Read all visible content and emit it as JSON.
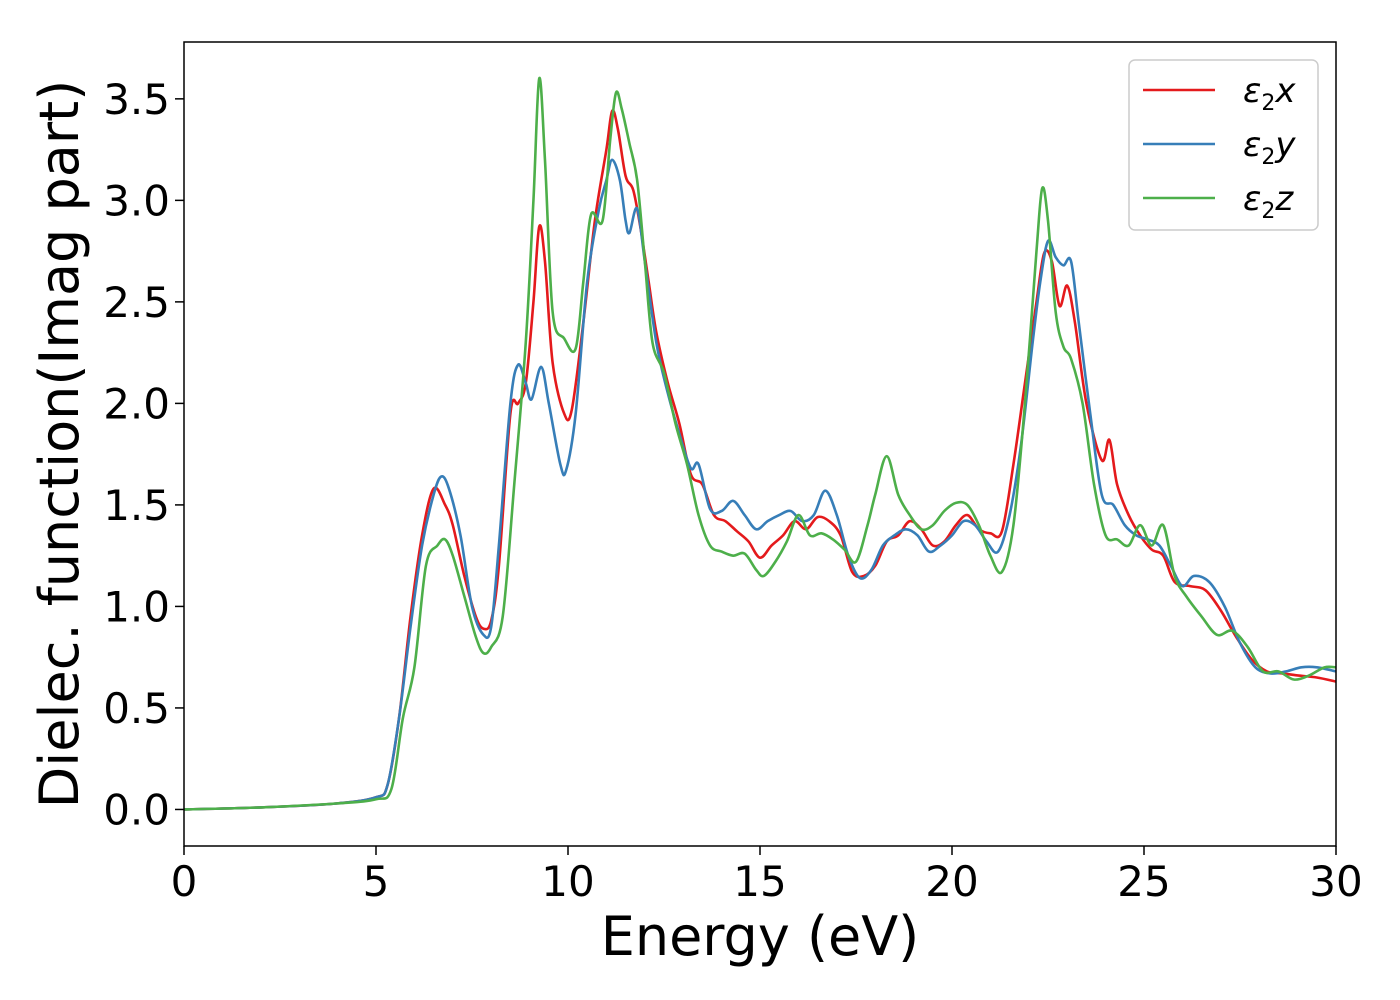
{
  "chart_data": {
    "type": "line",
    "xlabel": "Energy (eV)",
    "ylabel": "Dielec. function(Imag part)",
    "xlim": [
      0,
      30
    ],
    "ylim": [
      -0.18,
      3.78
    ],
    "xticks": [
      0,
      5,
      10,
      15,
      20,
      25,
      30
    ],
    "xtick_labels": [
      "0",
      "5",
      "10",
      "15",
      "20",
      "25",
      "30"
    ],
    "yticks": [
      0.0,
      0.5,
      1.0,
      1.5,
      2.0,
      2.5,
      3.0,
      3.5
    ],
    "ytick_labels": [
      "0.0",
      "0.5",
      "1.0",
      "1.5",
      "2.0",
      "2.5",
      "3.0",
      "3.5"
    ],
    "grid": false,
    "legend_position": "top-right",
    "series": [
      {
        "name": "ε2x",
        "symbol": "ε",
        "subscript": "2",
        "component": "x",
        "color": "#e41a1c",
        "points": [
          [
            0,
            0
          ],
          [
            2,
            0.01
          ],
          [
            4,
            0.03
          ],
          [
            5,
            0.06
          ],
          [
            5.3,
            0.12
          ],
          [
            5.6,
            0.45
          ],
          [
            5.9,
            0.95
          ],
          [
            6.2,
            1.35
          ],
          [
            6.5,
            1.58
          ],
          [
            6.8,
            1.5
          ],
          [
            7.0,
            1.4
          ],
          [
            7.3,
            1.15
          ],
          [
            7.6,
            0.95
          ],
          [
            7.8,
            0.89
          ],
          [
            8.0,
            0.93
          ],
          [
            8.2,
            1.2
          ],
          [
            8.5,
            1.95
          ],
          [
            8.7,
            2.0
          ],
          [
            8.9,
            2.1
          ],
          [
            9.1,
            2.5
          ],
          [
            9.25,
            2.87
          ],
          [
            9.4,
            2.7
          ],
          [
            9.6,
            2.2
          ],
          [
            9.9,
            1.95
          ],
          [
            10.1,
            1.97
          ],
          [
            10.4,
            2.4
          ],
          [
            10.7,
            2.9
          ],
          [
            11.0,
            3.25
          ],
          [
            11.15,
            3.44
          ],
          [
            11.3,
            3.35
          ],
          [
            11.5,
            3.12
          ],
          [
            11.7,
            3.05
          ],
          [
            11.9,
            2.85
          ],
          [
            12.1,
            2.6
          ],
          [
            12.3,
            2.35
          ],
          [
            12.6,
            2.1
          ],
          [
            12.9,
            1.9
          ],
          [
            13.2,
            1.65
          ],
          [
            13.5,
            1.6
          ],
          [
            13.8,
            1.45
          ],
          [
            14.1,
            1.42
          ],
          [
            14.4,
            1.37
          ],
          [
            14.7,
            1.32
          ],
          [
            15.0,
            1.24
          ],
          [
            15.3,
            1.3
          ],
          [
            15.6,
            1.35
          ],
          [
            15.9,
            1.42
          ],
          [
            16.2,
            1.38
          ],
          [
            16.5,
            1.44
          ],
          [
            16.8,
            1.42
          ],
          [
            17.1,
            1.35
          ],
          [
            17.4,
            1.17
          ],
          [
            17.7,
            1.15
          ],
          [
            18.0,
            1.2
          ],
          [
            18.3,
            1.32
          ],
          [
            18.6,
            1.35
          ],
          [
            18.9,
            1.42
          ],
          [
            19.2,
            1.38
          ],
          [
            19.5,
            1.3
          ],
          [
            19.8,
            1.32
          ],
          [
            20.1,
            1.4
          ],
          [
            20.4,
            1.45
          ],
          [
            20.7,
            1.38
          ],
          [
            21.0,
            1.36
          ],
          [
            21.3,
            1.37
          ],
          [
            21.6,
            1.7
          ],
          [
            21.9,
            2.1
          ],
          [
            22.2,
            2.5
          ],
          [
            22.4,
            2.74
          ],
          [
            22.6,
            2.7
          ],
          [
            22.8,
            2.48
          ],
          [
            23.0,
            2.58
          ],
          [
            23.2,
            2.4
          ],
          [
            23.5,
            2.0
          ],
          [
            23.9,
            1.72
          ],
          [
            24.1,
            1.82
          ],
          [
            24.3,
            1.6
          ],
          [
            24.6,
            1.45
          ],
          [
            24.9,
            1.35
          ],
          [
            25.2,
            1.28
          ],
          [
            25.5,
            1.25
          ],
          [
            25.8,
            1.12
          ],
          [
            26.2,
            1.1
          ],
          [
            26.6,
            1.08
          ],
          [
            27.0,
            0.98
          ],
          [
            27.4,
            0.85
          ],
          [
            27.8,
            0.74
          ],
          [
            28.2,
            0.68
          ],
          [
            28.6,
            0.67
          ],
          [
            29.0,
            0.66
          ],
          [
            29.5,
            0.65
          ],
          [
            30.0,
            0.63
          ]
        ]
      },
      {
        "name": "ε2y",
        "symbol": "ε",
        "subscript": "2",
        "component": "y",
        "color": "#377eb8",
        "points": [
          [
            0,
            0
          ],
          [
            2,
            0.01
          ],
          [
            4,
            0.03
          ],
          [
            5,
            0.06
          ],
          [
            5.3,
            0.12
          ],
          [
            5.6,
            0.45
          ],
          [
            5.9,
            0.9
          ],
          [
            6.2,
            1.3
          ],
          [
            6.5,
            1.55
          ],
          [
            6.7,
            1.64
          ],
          [
            6.9,
            1.58
          ],
          [
            7.2,
            1.35
          ],
          [
            7.5,
            1.0
          ],
          [
            7.8,
            0.86
          ],
          [
            8.0,
            0.9
          ],
          [
            8.2,
            1.3
          ],
          [
            8.5,
            2.0
          ],
          [
            8.7,
            2.19
          ],
          [
            8.9,
            2.1
          ],
          [
            9.05,
            2.02
          ],
          [
            9.3,
            2.18
          ],
          [
            9.5,
            2.0
          ],
          [
            9.8,
            1.7
          ],
          [
            9.95,
            1.67
          ],
          [
            10.2,
            1.95
          ],
          [
            10.5,
            2.6
          ],
          [
            10.8,
            2.95
          ],
          [
            11.0,
            3.1
          ],
          [
            11.15,
            3.2
          ],
          [
            11.35,
            3.1
          ],
          [
            11.5,
            2.9
          ],
          [
            11.6,
            2.84
          ],
          [
            11.8,
            2.96
          ],
          [
            12.0,
            2.7
          ],
          [
            12.3,
            2.3
          ],
          [
            12.6,
            2.05
          ],
          [
            12.9,
            1.85
          ],
          [
            13.2,
            1.68
          ],
          [
            13.4,
            1.7
          ],
          [
            13.7,
            1.48
          ],
          [
            14.0,
            1.47
          ],
          [
            14.3,
            1.52
          ],
          [
            14.6,
            1.45
          ],
          [
            14.9,
            1.38
          ],
          [
            15.2,
            1.42
          ],
          [
            15.5,
            1.45
          ],
          [
            15.8,
            1.47
          ],
          [
            16.1,
            1.42
          ],
          [
            16.4,
            1.45
          ],
          [
            16.7,
            1.57
          ],
          [
            17.0,
            1.45
          ],
          [
            17.3,
            1.25
          ],
          [
            17.6,
            1.14
          ],
          [
            17.9,
            1.18
          ],
          [
            18.2,
            1.3
          ],
          [
            18.5,
            1.35
          ],
          [
            18.8,
            1.38
          ],
          [
            19.1,
            1.35
          ],
          [
            19.4,
            1.27
          ],
          [
            19.7,
            1.3
          ],
          [
            20.0,
            1.35
          ],
          [
            20.3,
            1.42
          ],
          [
            20.6,
            1.4
          ],
          [
            20.9,
            1.32
          ],
          [
            21.2,
            1.27
          ],
          [
            21.5,
            1.45
          ],
          [
            21.8,
            1.8
          ],
          [
            22.1,
            2.3
          ],
          [
            22.3,
            2.6
          ],
          [
            22.5,
            2.8
          ],
          [
            22.7,
            2.72
          ],
          [
            22.9,
            2.68
          ],
          [
            23.1,
            2.7
          ],
          [
            23.3,
            2.4
          ],
          [
            23.6,
            1.95
          ],
          [
            23.9,
            1.55
          ],
          [
            24.2,
            1.5
          ],
          [
            24.5,
            1.4
          ],
          [
            24.8,
            1.35
          ],
          [
            25.1,
            1.33
          ],
          [
            25.4,
            1.3
          ],
          [
            25.7,
            1.2
          ],
          [
            26.0,
            1.1
          ],
          [
            26.3,
            1.15
          ],
          [
            26.7,
            1.12
          ],
          [
            27.1,
            1.0
          ],
          [
            27.5,
            0.82
          ],
          [
            27.9,
            0.7
          ],
          [
            28.3,
            0.67
          ],
          [
            28.7,
            0.68
          ],
          [
            29.1,
            0.7
          ],
          [
            29.5,
            0.7
          ],
          [
            30.0,
            0.68
          ]
        ]
      },
      {
        "name": "ε2z",
        "symbol": "ε",
        "subscript": "2",
        "component": "z",
        "color": "#4daf4a",
        "points": [
          [
            0,
            0
          ],
          [
            2,
            0.01
          ],
          [
            4,
            0.03
          ],
          [
            5,
            0.05
          ],
          [
            5.4,
            0.1
          ],
          [
            5.7,
            0.45
          ],
          [
            6.0,
            0.7
          ],
          [
            6.3,
            1.2
          ],
          [
            6.6,
            1.3
          ],
          [
            6.8,
            1.33
          ],
          [
            7.0,
            1.25
          ],
          [
            7.3,
            1.05
          ],
          [
            7.6,
            0.85
          ],
          [
            7.8,
            0.77
          ],
          [
            8.0,
            0.8
          ],
          [
            8.3,
            0.95
          ],
          [
            8.6,
            1.6
          ],
          [
            8.9,
            2.3
          ],
          [
            9.1,
            3.0
          ],
          [
            9.25,
            3.6
          ],
          [
            9.4,
            3.2
          ],
          [
            9.6,
            2.45
          ],
          [
            9.9,
            2.32
          ],
          [
            10.2,
            2.27
          ],
          [
            10.4,
            2.6
          ],
          [
            10.6,
            2.93
          ],
          [
            10.9,
            2.9
          ],
          [
            11.1,
            3.3
          ],
          [
            11.25,
            3.53
          ],
          [
            11.4,
            3.45
          ],
          [
            11.6,
            3.28
          ],
          [
            11.8,
            3.1
          ],
          [
            12.0,
            2.7
          ],
          [
            12.2,
            2.3
          ],
          [
            12.5,
            2.15
          ],
          [
            12.8,
            1.9
          ],
          [
            13.1,
            1.7
          ],
          [
            13.4,
            1.45
          ],
          [
            13.7,
            1.3
          ],
          [
            14.0,
            1.27
          ],
          [
            14.3,
            1.25
          ],
          [
            14.6,
            1.26
          ],
          [
            14.9,
            1.18
          ],
          [
            15.1,
            1.15
          ],
          [
            15.4,
            1.22
          ],
          [
            15.7,
            1.32
          ],
          [
            16.0,
            1.45
          ],
          [
            16.3,
            1.35
          ],
          [
            16.6,
            1.36
          ],
          [
            16.9,
            1.33
          ],
          [
            17.2,
            1.28
          ],
          [
            17.5,
            1.22
          ],
          [
            17.8,
            1.4
          ],
          [
            18.0,
            1.55
          ],
          [
            18.3,
            1.74
          ],
          [
            18.6,
            1.55
          ],
          [
            18.9,
            1.45
          ],
          [
            19.2,
            1.38
          ],
          [
            19.5,
            1.4
          ],
          [
            19.8,
            1.47
          ],
          [
            20.1,
            1.51
          ],
          [
            20.4,
            1.5
          ],
          [
            20.7,
            1.4
          ],
          [
            21.0,
            1.25
          ],
          [
            21.3,
            1.17
          ],
          [
            21.6,
            1.4
          ],
          [
            21.9,
            2.0
          ],
          [
            22.2,
            2.75
          ],
          [
            22.35,
            3.06
          ],
          [
            22.5,
            2.9
          ],
          [
            22.7,
            2.45
          ],
          [
            22.9,
            2.28
          ],
          [
            23.1,
            2.22
          ],
          [
            23.4,
            2.0
          ],
          [
            23.7,
            1.6
          ],
          [
            24.0,
            1.35
          ],
          [
            24.3,
            1.33
          ],
          [
            24.6,
            1.3
          ],
          [
            24.9,
            1.4
          ],
          [
            25.2,
            1.3
          ],
          [
            25.5,
            1.4
          ],
          [
            25.8,
            1.15
          ],
          [
            26.1,
            1.05
          ],
          [
            26.5,
            0.95
          ],
          [
            26.9,
            0.86
          ],
          [
            27.3,
            0.88
          ],
          [
            27.7,
            0.8
          ],
          [
            28.1,
            0.68
          ],
          [
            28.5,
            0.68
          ],
          [
            28.9,
            0.64
          ],
          [
            29.3,
            0.66
          ],
          [
            29.7,
            0.7
          ],
          [
            30.0,
            0.7
          ]
        ]
      }
    ]
  }
}
